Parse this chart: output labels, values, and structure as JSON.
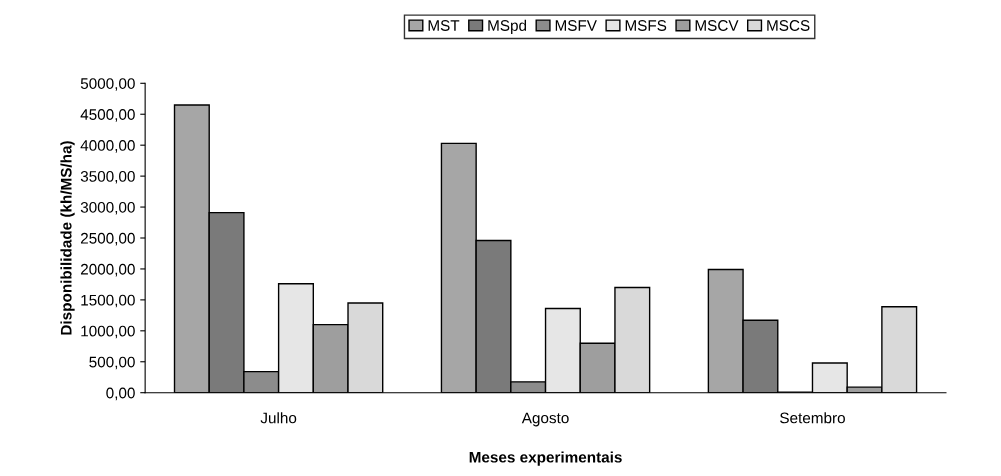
{
  "chart_data": {
    "type": "bar",
    "xlabel": "Meses experimentais",
    "ylabel": "Disponibilidade (kh/MS/ha)",
    "categories": [
      "Julho",
      "Agosto",
      "Setembro"
    ],
    "series": [
      {
        "name": "MST",
        "color": "#a6a6a6",
        "values": [
          4650,
          4030,
          1990
        ]
      },
      {
        "name": "MSpd",
        "color": "#7a7a7a",
        "values": [
          2910,
          2460,
          1170
        ]
      },
      {
        "name": "MSFV",
        "color": "#8c8c8c",
        "values": [
          340,
          175,
          10
        ]
      },
      {
        "name": "MSFS",
        "color": "#e6e6e6",
        "values": [
          1760,
          1360,
          480
        ]
      },
      {
        "name": "MSCV",
        "color": "#9e9e9e",
        "values": [
          1100,
          800,
          90
        ]
      },
      {
        "name": "MSCS",
        "color": "#d9d9d9",
        "values": [
          1450,
          1700,
          1390
        ]
      }
    ],
    "ylim": [
      0,
      5000
    ],
    "yticks": [
      {
        "value": 0,
        "label": "0,00"
      },
      {
        "value": 500,
        "label": "500,00"
      },
      {
        "value": 1000,
        "label": "1000,00"
      },
      {
        "value": 1500,
        "label": "1500,00"
      },
      {
        "value": 2000,
        "label": "2000,00"
      },
      {
        "value": 2500,
        "label": "2500,00"
      },
      {
        "value": 3000,
        "label": "3000,00"
      },
      {
        "value": 3500,
        "label": "3500,00"
      },
      {
        "value": 4000,
        "label": "4000,00"
      },
      {
        "value": 4500,
        "label": "4500,00"
      },
      {
        "value": 5000,
        "label": "5000,00"
      }
    ],
    "grid": false,
    "legend": "top"
  }
}
